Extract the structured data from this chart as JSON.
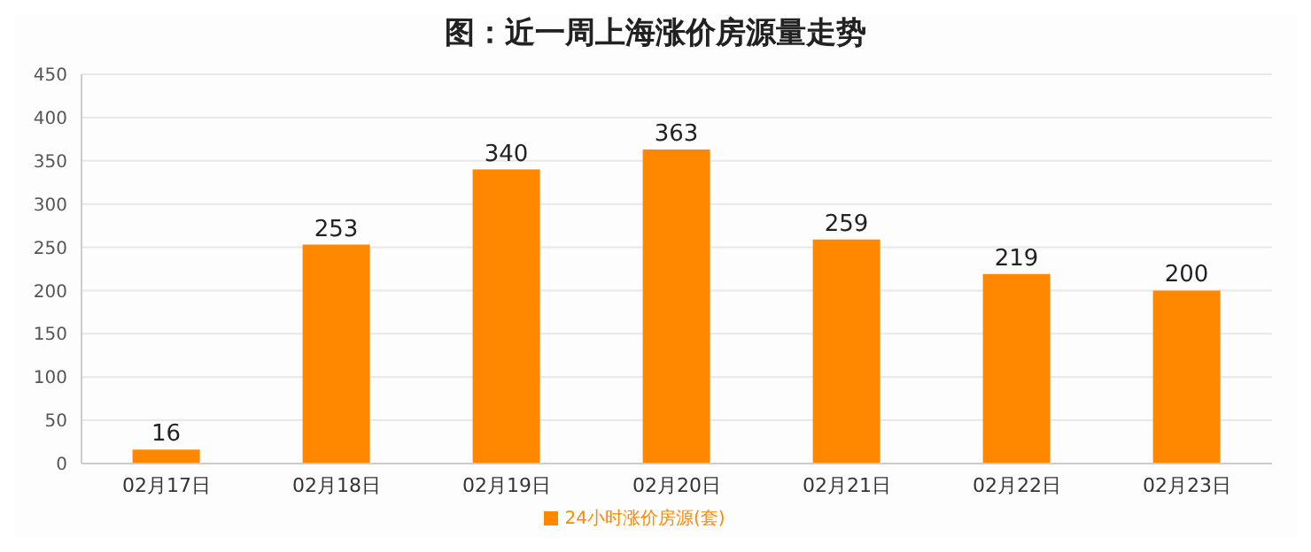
{
  "chart_data": {
    "type": "bar",
    "title": "图：近一周上海涨价房源量走势",
    "categories": [
      "02月17日",
      "02月18日",
      "02月19日",
      "02月20日",
      "02月21日",
      "02月22日",
      "02月23日"
    ],
    "series": [
      {
        "name": "24小时涨价房源(套)",
        "color": "#ff8800",
        "values": [
          16,
          253,
          340,
          363,
          259,
          219,
          200
        ]
      }
    ],
    "ylim": [
      0,
      450
    ],
    "yticks": [
      0,
      50,
      100,
      150,
      200,
      250,
      300,
      350,
      400,
      450
    ],
    "grid": "y",
    "legend": "bottom",
    "data_labels": true
  }
}
